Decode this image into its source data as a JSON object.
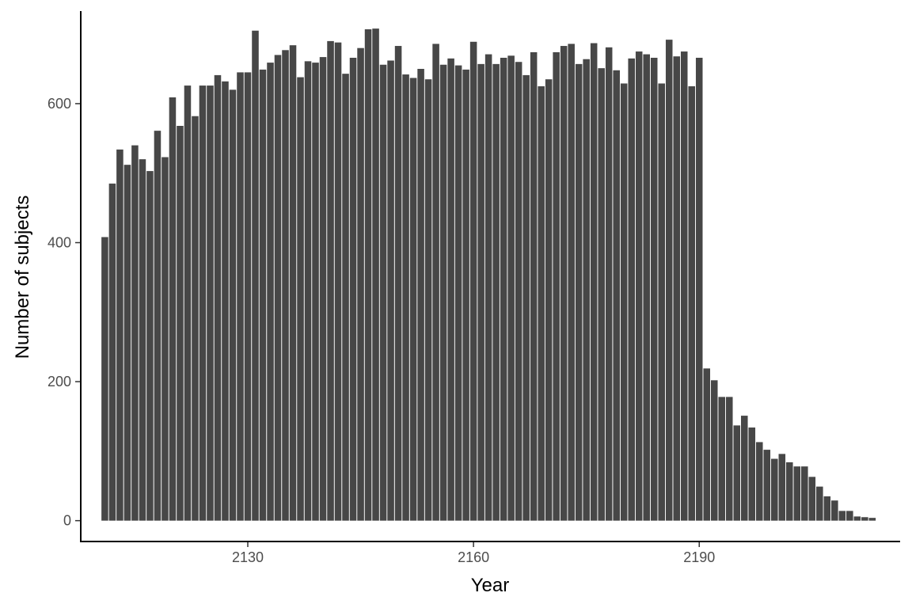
{
  "chart_data": {
    "type": "bar",
    "title": "",
    "xlabel": "Year",
    "ylabel": "Number of subjects",
    "xlim": [
      2107.8,
      2216.7
    ],
    "ylim": [
      -30,
      740
    ],
    "x_ticks": [
      2130,
      2160,
      2190
    ],
    "y_ticks": [
      0,
      200,
      400,
      600
    ],
    "grid": false,
    "legend": "none",
    "bar_color": "#474747",
    "bars": [
      {
        "x": 2111,
        "y": 408
      },
      {
        "x": 2112,
        "y": 485
      },
      {
        "x": 2113,
        "y": 534
      },
      {
        "x": 2114,
        "y": 512
      },
      {
        "x": 2115,
        "y": 540
      },
      {
        "x": 2116,
        "y": 520
      },
      {
        "x": 2117,
        "y": 503
      },
      {
        "x": 2118,
        "y": 561
      },
      {
        "x": 2119,
        "y": 523
      },
      {
        "x": 2120,
        "y": 609
      },
      {
        "x": 2121,
        "y": 568
      },
      {
        "x": 2122,
        "y": 626
      },
      {
        "x": 2123,
        "y": 582
      },
      {
        "x": 2124,
        "y": 626
      },
      {
        "x": 2125,
        "y": 626
      },
      {
        "x": 2126,
        "y": 641
      },
      {
        "x": 2127,
        "y": 632
      },
      {
        "x": 2128,
        "y": 620
      },
      {
        "x": 2129,
        "y": 645
      },
      {
        "x": 2130,
        "y": 645
      },
      {
        "x": 2131,
        "y": 705
      },
      {
        "x": 2132,
        "y": 649
      },
      {
        "x": 2133,
        "y": 659
      },
      {
        "x": 2134,
        "y": 670
      },
      {
        "x": 2135,
        "y": 677
      },
      {
        "x": 2136,
        "y": 684
      },
      {
        "x": 2137,
        "y": 638
      },
      {
        "x": 2138,
        "y": 661
      },
      {
        "x": 2139,
        "y": 659
      },
      {
        "x": 2140,
        "y": 667
      },
      {
        "x": 2141,
        "y": 690
      },
      {
        "x": 2142,
        "y": 688
      },
      {
        "x": 2143,
        "y": 643
      },
      {
        "x": 2144,
        "y": 666
      },
      {
        "x": 2145,
        "y": 680
      },
      {
        "x": 2146,
        "y": 707
      },
      {
        "x": 2147,
        "y": 708
      },
      {
        "x": 2148,
        "y": 656
      },
      {
        "x": 2149,
        "y": 662
      },
      {
        "x": 2150,
        "y": 683
      },
      {
        "x": 2151,
        "y": 642
      },
      {
        "x": 2152,
        "y": 637
      },
      {
        "x": 2153,
        "y": 650
      },
      {
        "x": 2154,
        "y": 635
      },
      {
        "x": 2155,
        "y": 686
      },
      {
        "x": 2156,
        "y": 656
      },
      {
        "x": 2157,
        "y": 665
      },
      {
        "x": 2158,
        "y": 655
      },
      {
        "x": 2159,
        "y": 649
      },
      {
        "x": 2160,
        "y": 689
      },
      {
        "x": 2161,
        "y": 657
      },
      {
        "x": 2162,
        "y": 671
      },
      {
        "x": 2163,
        "y": 657
      },
      {
        "x": 2164,
        "y": 666
      },
      {
        "x": 2165,
        "y": 669
      },
      {
        "x": 2166,
        "y": 660
      },
      {
        "x": 2167,
        "y": 641
      },
      {
        "x": 2168,
        "y": 674
      },
      {
        "x": 2169,
        "y": 625
      },
      {
        "x": 2170,
        "y": 635
      },
      {
        "x": 2171,
        "y": 674
      },
      {
        "x": 2172,
        "y": 683
      },
      {
        "x": 2173,
        "y": 686
      },
      {
        "x": 2174,
        "y": 657
      },
      {
        "x": 2175,
        "y": 664
      },
      {
        "x": 2176,
        "y": 687
      },
      {
        "x": 2177,
        "y": 651
      },
      {
        "x": 2178,
        "y": 681
      },
      {
        "x": 2179,
        "y": 648
      },
      {
        "x": 2180,
        "y": 629
      },
      {
        "x": 2181,
        "y": 665
      },
      {
        "x": 2182,
        "y": 675
      },
      {
        "x": 2183,
        "y": 671
      },
      {
        "x": 2184,
        "y": 666
      },
      {
        "x": 2185,
        "y": 629
      },
      {
        "x": 2186,
        "y": 692
      },
      {
        "x": 2187,
        "y": 668
      },
      {
        "x": 2188,
        "y": 675
      },
      {
        "x": 2189,
        "y": 625
      },
      {
        "x": 2190,
        "y": 666
      },
      {
        "x": 2191,
        "y": 219
      },
      {
        "x": 2192,
        "y": 202
      },
      {
        "x": 2193,
        "y": 178
      },
      {
        "x": 2194,
        "y": 178
      },
      {
        "x": 2195,
        "y": 137
      },
      {
        "x": 2196,
        "y": 151
      },
      {
        "x": 2197,
        "y": 134
      },
      {
        "x": 2198,
        "y": 113
      },
      {
        "x": 2199,
        "y": 102
      },
      {
        "x": 2200,
        "y": 89
      },
      {
        "x": 2201,
        "y": 96
      },
      {
        "x": 2202,
        "y": 84
      },
      {
        "x": 2203,
        "y": 78
      },
      {
        "x": 2204,
        "y": 78
      },
      {
        "x": 2205,
        "y": 63
      },
      {
        "x": 2206,
        "y": 49
      },
      {
        "x": 2207,
        "y": 35
      },
      {
        "x": 2208,
        "y": 29
      },
      {
        "x": 2209,
        "y": 14
      },
      {
        "x": 2210,
        "y": 14
      },
      {
        "x": 2211,
        "y": 6
      },
      {
        "x": 2212,
        "y": 5
      },
      {
        "x": 2213,
        "y": 4
      }
    ]
  }
}
